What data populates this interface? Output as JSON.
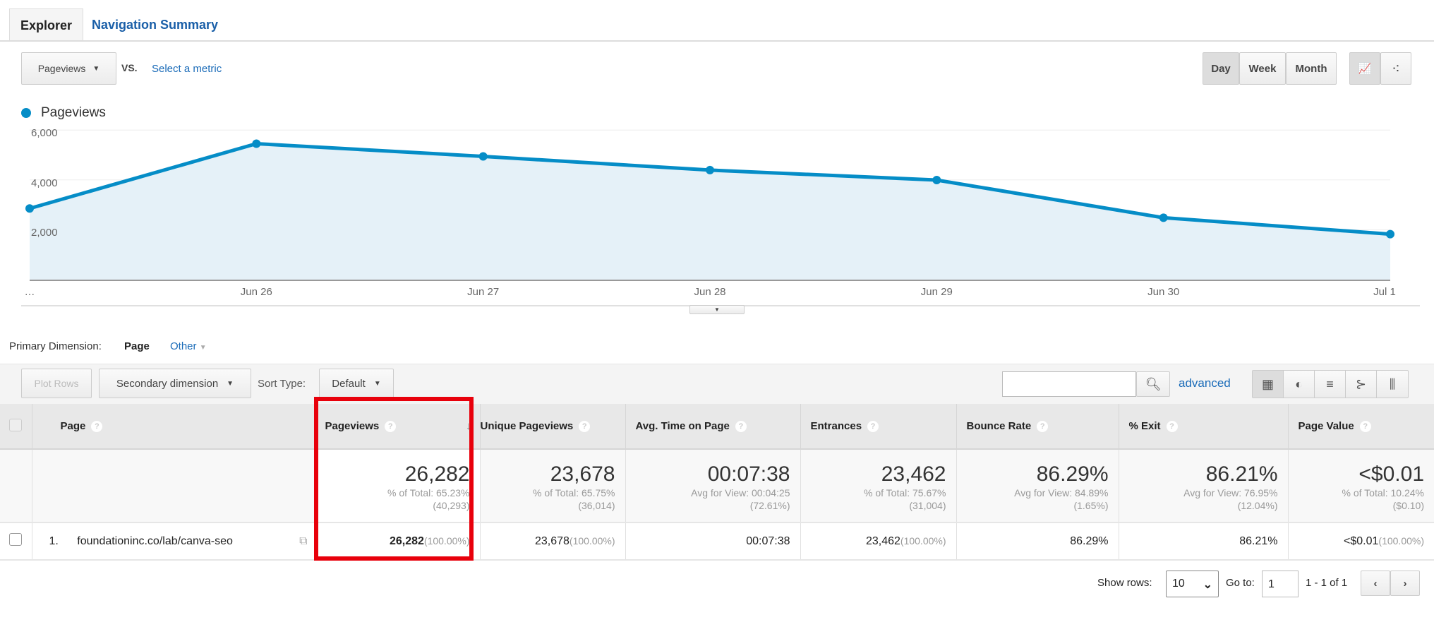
{
  "tabs": [
    "Explorer",
    "Navigation Summary"
  ],
  "metric": {
    "selected": "Pageviews",
    "vs": "VS.",
    "select_metric": "Select a metric"
  },
  "periods": [
    "Day",
    "Week",
    "Month"
  ],
  "legend": "Pageviews",
  "colors": {
    "line": "#058dc7",
    "area": "#e5f1f8",
    "highlight": "#e8000b"
  },
  "chart_data": {
    "type": "area",
    "series": [
      {
        "name": "Pageviews",
        "values": [
          3250,
          5850,
          5340,
          4790,
          4390,
          2880,
          2220
        ]
      }
    ],
    "x": [
      "…",
      "Jun 26",
      "Jun 27",
      "Jun 28",
      "Jun 29",
      "Jun 30",
      "Jul 1"
    ],
    "yticks": [
      "2,000",
      "4,000",
      "6,000"
    ],
    "ytick_values": [
      2000,
      4000,
      6000
    ]
  },
  "primary_dimension": {
    "label": "Primary Dimension:",
    "value": "Page",
    "other": "Other"
  },
  "toolbar": {
    "plot_rows": "Plot Rows",
    "secondary": "Secondary dimension",
    "sort_type": "Sort Type:",
    "sort_value": "Default",
    "advanced": "advanced"
  },
  "columns": [
    "Page",
    "Pageviews",
    "Unique Pageviews",
    "Avg. Time on Page",
    "Entrances",
    "Bounce Rate",
    "% Exit",
    "Page Value"
  ],
  "summary": [
    {
      "big": "26,282",
      "l1": "% of Total: 65.23%",
      "l2": "(40,293)"
    },
    {
      "big": "23,678",
      "l1": "% of Total: 65.75%",
      "l2": "(36,014)"
    },
    {
      "big": "00:07:38",
      "l1": "Avg for View: 00:04:25",
      "l2": "(72.61%)"
    },
    {
      "big": "23,462",
      "l1": "% of Total: 75.67%",
      "l2": "(31,004)"
    },
    {
      "big": "86.29%",
      "l1": "Avg for View: 84.89%",
      "l2": "(1.65%)"
    },
    {
      "big": "86.21%",
      "l1": "Avg for View: 76.95%",
      "l2": "(12.04%)"
    },
    {
      "big": "<$0.01",
      "l1": "% of Total: 10.24%",
      "l2": "($0.10)"
    }
  ],
  "rows": [
    {
      "index": "1.",
      "page": "foundationinc.co/lab/canva-seo",
      "pageviews": "26,282",
      "pageviews_pct": "(100.00%)",
      "unique": "23,678",
      "unique_pct": "(100.00%)",
      "avg_time": "00:07:38",
      "entrances": "23,462",
      "entrances_pct": "(100.00%)",
      "bounce": "86.29%",
      "exit": "86.21%",
      "value": "<$0.01",
      "value_pct": "(100.00%)"
    }
  ],
  "pagination": {
    "show_rows": "Show rows:",
    "rows_value": "10",
    "goto": "Go to:",
    "goto_value": "1",
    "range": "1 - 1 of 1"
  }
}
